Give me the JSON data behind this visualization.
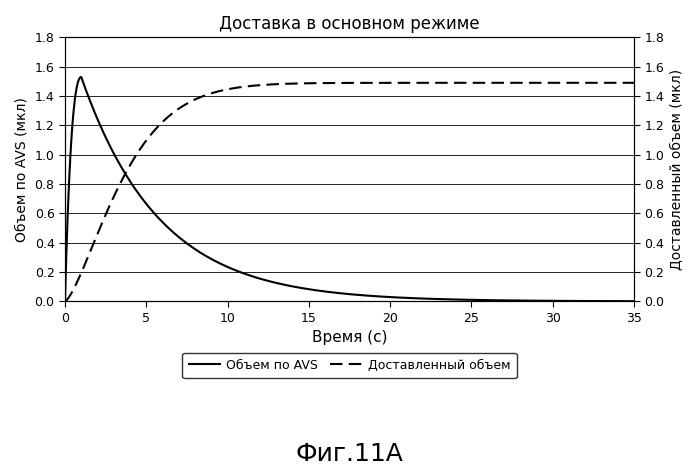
{
  "title": "Доставка в основном режиме",
  "xlabel": "Время (с)",
  "ylabel_left": "Объем по AVS (мкл)",
  "ylabel_right": "Доставленный объем (мкл)",
  "xlim": [
    0,
    35
  ],
  "ylim": [
    0.0,
    1.8
  ],
  "xticks": [
    0,
    5,
    10,
    15,
    20,
    25,
    30,
    35
  ],
  "yticks": [
    0.0,
    0.2,
    0.4,
    0.6,
    0.8,
    1.0,
    1.2,
    1.4,
    1.6,
    1.8
  ],
  "legend_label_solid": "Объем по AVS",
  "legend_label_dashed": "Доставленный объем",
  "caption": "Фиг.11А",
  "background_color": "#ffffff",
  "line_color": "#000000",
  "avs_peak_x": 1.0,
  "avs_peak_y": 1.53,
  "avs_decay_tau": 4.8,
  "delivered_max": 1.49,
  "delivered_k": 0.14,
  "delivered_power": 1.4
}
